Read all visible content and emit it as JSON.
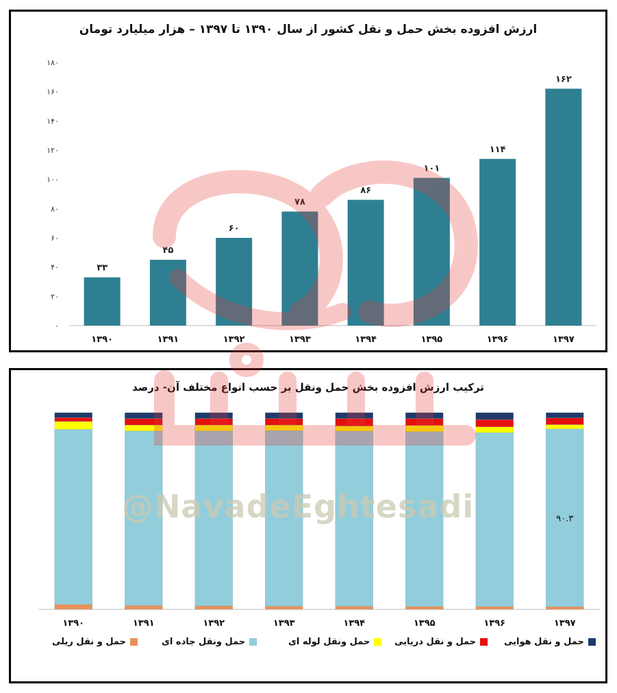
{
  "chart_data": [
    {
      "type": "bar",
      "title": "ارزش افزوده بخش حمل و نقل کشور از سال ۱۳۹۰ تا ۱۳۹۷ –  هزار میلیارد تومان",
      "categories": [
        "۱۳۹۰",
        "۱۳۹۱",
        "۱۳۹۲",
        "۱۳۹۳",
        "۱۳۹۴",
        "۱۳۹۵",
        "۱۳۹۶",
        "۱۳۹۷"
      ],
      "values": [
        33,
        45,
        60,
        78,
        86,
        101,
        114,
        162
      ],
      "value_labels": [
        "۳۳",
        "۴۵",
        "۶۰",
        "۷۸",
        "۸۶",
        "۱۰۱",
        "۱۱۴",
        "۱۶۲"
      ],
      "yticks": [
        "۰",
        "۲۰",
        "۴۰",
        "۶۰",
        "۸۰",
        "۱۰۰",
        "۱۲۰",
        "۱۴۰",
        "۱۶۰",
        "۱۸۰"
      ],
      "ylim": [
        0,
        180
      ],
      "bar_color": "#2f7f92",
      "grid": false
    },
    {
      "type": "bar",
      "stacked": true,
      "title": "ترکیب ارزش افزوده بخش حمل ونقل بر حسب انواع مختلف آن- درصد",
      "categories": [
        "۱۳۹۰",
        "۱۳۹۱",
        "۱۳۹۲",
        "۱۳۹۳",
        "۱۳۹۴",
        "۱۳۹۵",
        "۱۳۹۶",
        "۱۳۹۷"
      ],
      "ylim": [
        0,
        100
      ],
      "series": [
        {
          "name": "حمل و نقل ریلی",
          "color": "#e8915a",
          "values": [
            2.5,
            2.0,
            1.8,
            1.6,
            1.6,
            1.5,
            1.5,
            1.4
          ]
        },
        {
          "name": "حمل ونقل جاده ای",
          "color": "#92cddc",
          "values": [
            89.0,
            88.7,
            88.9,
            89.3,
            89.0,
            88.8,
            88.3,
            90.3
          ]
        },
        {
          "name": "حمل ونقل لوله ای",
          "color": "#ffff00",
          "values": [
            4.0,
            3.0,
            3.0,
            2.8,
            2.6,
            3.2,
            3.0,
            2.2
          ]
        },
        {
          "name": "حمل و نقل دریایی",
          "color": "#e41010",
          "values": [
            2.0,
            3.3,
            3.3,
            3.3,
            3.8,
            3.5,
            3.7,
            3.4
          ]
        },
        {
          "name": "حمل و نقل هوایی",
          "color": "#1f3a6b",
          "values": [
            2.5,
            3.0,
            3.0,
            3.0,
            3.0,
            3.0,
            3.5,
            2.7
          ]
        }
      ],
      "annotation": {
        "category_index": 7,
        "series_index": 1,
        "text": "۹۰.۳"
      }
    }
  ],
  "watermark": {
    "logo_text": "نود اقتصادی",
    "handle": "@NavadeEghtesadi",
    "logo_color": "#e53935"
  }
}
